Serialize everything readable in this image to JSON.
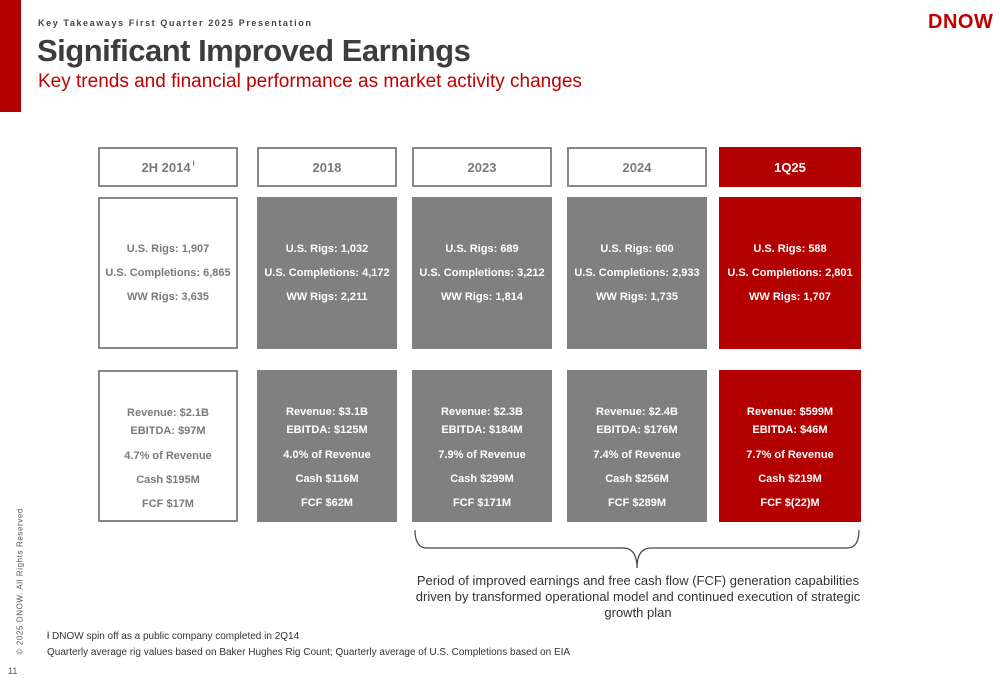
{
  "header": {
    "kicker": "Key Takeaways First Quarter 2025 Presentation",
    "title": "Significant Improved Earnings",
    "subtitle": "Key trends and financial performance as market activity changes",
    "logo": "DNOW"
  },
  "columns": [
    {
      "label": "2H 2014",
      "footnote_mark": "ł",
      "rigs": "U.S. Rigs: 1,907",
      "completions": "U.S. Completions: 6,865",
      "ww_rigs": "WW Rigs: 3,635",
      "revenue": "Revenue: $2.1B",
      "ebitda": "EBITDA: $97M",
      "pct": "4.7% of Revenue",
      "cash": "Cash $195M",
      "fcf": "FCF  $17M"
    },
    {
      "label": "2018",
      "rigs": "U.S. Rigs: 1,032",
      "completions": "U.S. Completions: 4,172",
      "ww_rigs": "WW Rigs: 2,211",
      "revenue": "Revenue: $3.1B",
      "ebitda": "EBITDA: $125M",
      "pct": "4.0% of Revenue",
      "cash": "Cash $116M",
      "fcf": "FCF  $62M"
    },
    {
      "label": "2023",
      "rigs": "U.S. Rigs: 689",
      "completions": "U.S. Completions: 3,212",
      "ww_rigs": "WW Rigs: 1,814",
      "revenue": "Revenue: $2.3B",
      "ebitda": "EBITDA: $184M",
      "pct": "7.9% of Revenue",
      "cash": "Cash $299M",
      "fcf": "FCF  $171M"
    },
    {
      "label": "2024",
      "rigs": "U.S. Rigs: 600",
      "completions": "U.S. Completions: 2,933",
      "ww_rigs": "WW Rigs: 1,735",
      "revenue": "Revenue: $2.4B",
      "ebitda": "EBITDA: $176M",
      "pct": "7.4% of Revenue",
      "cash": "Cash $256M",
      "fcf": "FCF  $289M"
    },
    {
      "label": "1Q25",
      "rigs": "U.S. Rigs: 588",
      "completions": "U.S. Completions: 2,801",
      "ww_rigs": "WW Rigs: 1,707",
      "revenue": "Revenue: $599M",
      "ebitda": "EBITDA: $46M",
      "pct": "7.7% of Revenue",
      "cash": "Cash $219M",
      "fcf": "FCF $(22)M"
    }
  ],
  "period_text": "Period of improved earnings and free cash flow (FCF) generation capabilities driven by transformed operational model and continued execution of strategic growth plan",
  "footnotes": {
    "spin_off": "ł DNOW spin off as a public company completed in 2Q14",
    "rig_source": "Quarterly average rig values based on Baker Hughes Rig Count; Quarterly average of U.S. Completions based on EIA"
  },
  "copyright": "© 2025 DNOW. All Rights Reserved",
  "page_number": "11",
  "colors": {
    "accent_red": "#b30000",
    "grey_box": "#808080",
    "title": "#3d3d3d"
  }
}
